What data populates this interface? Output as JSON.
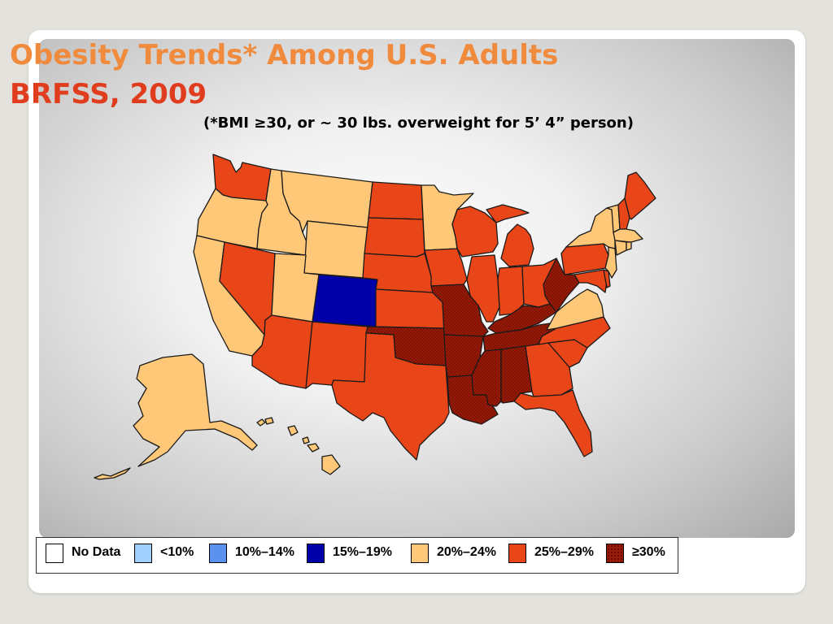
{
  "slide": {
    "title_line1": "Obesity Trends* Among U.S. Adults",
    "title_line2": "BRFSS, 2009",
    "subtitle": "(*BMI ≥30, or ~ 30 lbs. overweight for 5’ 4” person)"
  },
  "colors": {
    "no_data": "#ffffff",
    "lt10": "#9fd0ff",
    "r10_14": "#5b92f0",
    "r15_19": "#0000a8",
    "r20_24": "#fec878",
    "r25_29": "#e84519",
    "ge30": "#9a1a08"
  },
  "legend": [
    {
      "key": "no_data",
      "label": "No Data"
    },
    {
      "key": "lt10",
      "label": "<10%"
    },
    {
      "key": "r10_14",
      "label": "10%–14%"
    },
    {
      "key": "r15_19",
      "label": "15%–19%"
    },
    {
      "key": "r20_24",
      "label": "20%–24%"
    },
    {
      "key": "r25_29",
      "label": "25%–29%"
    },
    {
      "key": "ge30",
      "label": "≥30%"
    }
  ],
  "states": [
    {
      "state": "washington",
      "category": "r25_29"
    },
    {
      "state": "oregon",
      "category": "r20_24"
    },
    {
      "state": "california",
      "category": "r20_24"
    },
    {
      "state": "nevada",
      "category": "r25_29"
    },
    {
      "state": "idaho",
      "category": "r20_24"
    },
    {
      "state": "montana",
      "category": "r20_24"
    },
    {
      "state": "wyoming",
      "category": "r20_24"
    },
    {
      "state": "utah",
      "category": "r20_24"
    },
    {
      "state": "colorado",
      "category": "r15_19"
    },
    {
      "state": "arizona",
      "category": "r25_29"
    },
    {
      "state": "new-mexico",
      "category": "r25_29"
    },
    {
      "state": "north-dakota",
      "category": "r25_29"
    },
    {
      "state": "south-dakota",
      "category": "r25_29"
    },
    {
      "state": "nebraska",
      "category": "r25_29"
    },
    {
      "state": "kansas",
      "category": "r25_29"
    },
    {
      "state": "oklahoma",
      "category": "ge30"
    },
    {
      "state": "texas",
      "category": "r25_29"
    },
    {
      "state": "minnesota",
      "category": "r20_24"
    },
    {
      "state": "iowa",
      "category": "r25_29"
    },
    {
      "state": "missouri",
      "category": "ge30"
    },
    {
      "state": "arkansas",
      "category": "ge30"
    },
    {
      "state": "louisiana",
      "category": "ge30"
    },
    {
      "state": "wisconsin",
      "category": "r25_29"
    },
    {
      "state": "illinois",
      "category": "r25_29"
    },
    {
      "state": "michigan",
      "category": "r25_29"
    },
    {
      "state": "indiana",
      "category": "r25_29"
    },
    {
      "state": "ohio",
      "category": "r25_29"
    },
    {
      "state": "kentucky",
      "category": "ge30"
    },
    {
      "state": "tennessee",
      "category": "ge30"
    },
    {
      "state": "mississippi",
      "category": "ge30"
    },
    {
      "state": "alabama",
      "category": "ge30"
    },
    {
      "state": "georgia",
      "category": "r25_29"
    },
    {
      "state": "florida",
      "category": "r25_29"
    },
    {
      "state": "south-carolina",
      "category": "r25_29"
    },
    {
      "state": "north-carolina",
      "category": "r25_29"
    },
    {
      "state": "virginia",
      "category": "r20_24"
    },
    {
      "state": "west-virginia",
      "category": "ge30"
    },
    {
      "state": "pennsylvania",
      "category": "r25_29"
    },
    {
      "state": "new-york",
      "category": "r20_24"
    },
    {
      "state": "vermont",
      "category": "r20_24"
    },
    {
      "state": "new-hampshire",
      "category": "r25_29"
    },
    {
      "state": "maine",
      "category": "r25_29"
    },
    {
      "state": "massachusetts",
      "category": "r20_24"
    },
    {
      "state": "connecticut",
      "category": "r20_24"
    },
    {
      "state": "rhode-island",
      "category": "r20_24"
    },
    {
      "state": "new-jersey",
      "category": "r20_24"
    },
    {
      "state": "delaware",
      "category": "r25_29"
    },
    {
      "state": "maryland",
      "category": "r25_29"
    },
    {
      "state": "alaska",
      "category": "r20_24"
    },
    {
      "state": "hawaii",
      "category": "r20_24"
    }
  ]
}
